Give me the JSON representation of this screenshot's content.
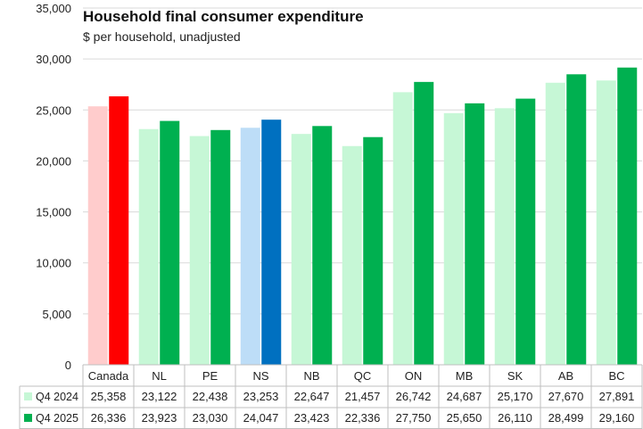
{
  "chart_data": {
    "type": "bar",
    "title": "Household final consumer expenditure",
    "subtitle": "$ per household, unadjusted",
    "xlabel": "",
    "ylabel": "",
    "ylim": [
      0,
      35000
    ],
    "y_ticks": [
      0,
      5000,
      10000,
      15000,
      20000,
      25000,
      30000,
      35000
    ],
    "y_tick_labels": [
      "0",
      "5,000",
      "10,000",
      "15,000",
      "20,000",
      "25,000",
      "30,000",
      "35,000"
    ],
    "grid": true,
    "legend_position": "data-table-left",
    "categories": [
      "Canada",
      "NL",
      "PE",
      "NS",
      "NB",
      "QC",
      "ON",
      "MB",
      "SK",
      "AB",
      "BC"
    ],
    "series": [
      {
        "name": "Q4 2024",
        "values": [
          25358,
          23122,
          22438,
          23253,
          22647,
          21457,
          26742,
          24687,
          25170,
          27670,
          27891
        ],
        "value_labels": [
          "25,358",
          "23,122",
          "22,438",
          "23,253",
          "22,647",
          "21,457",
          "26,742",
          "24,687",
          "25,170",
          "27,670",
          "27,891"
        ],
        "color": "#c6f7d6",
        "highlight_colors": {
          "Canada": "#ffcccc",
          "NS": "#bdddf7"
        }
      },
      {
        "name": "Q4 2025",
        "values": [
          26336,
          23923,
          23030,
          24047,
          23423,
          22336,
          27750,
          25650,
          26110,
          28499,
          29160
        ],
        "value_labels": [
          "26,336",
          "23,923",
          "23,030",
          "24,047",
          "23,423",
          "22,336",
          "27,750",
          "25,650",
          "26,110",
          "28,499",
          "29,160"
        ],
        "color": "#00b050",
        "highlight_colors": {
          "Canada": "#ff0000",
          "NS": "#0070c0"
        }
      }
    ]
  }
}
